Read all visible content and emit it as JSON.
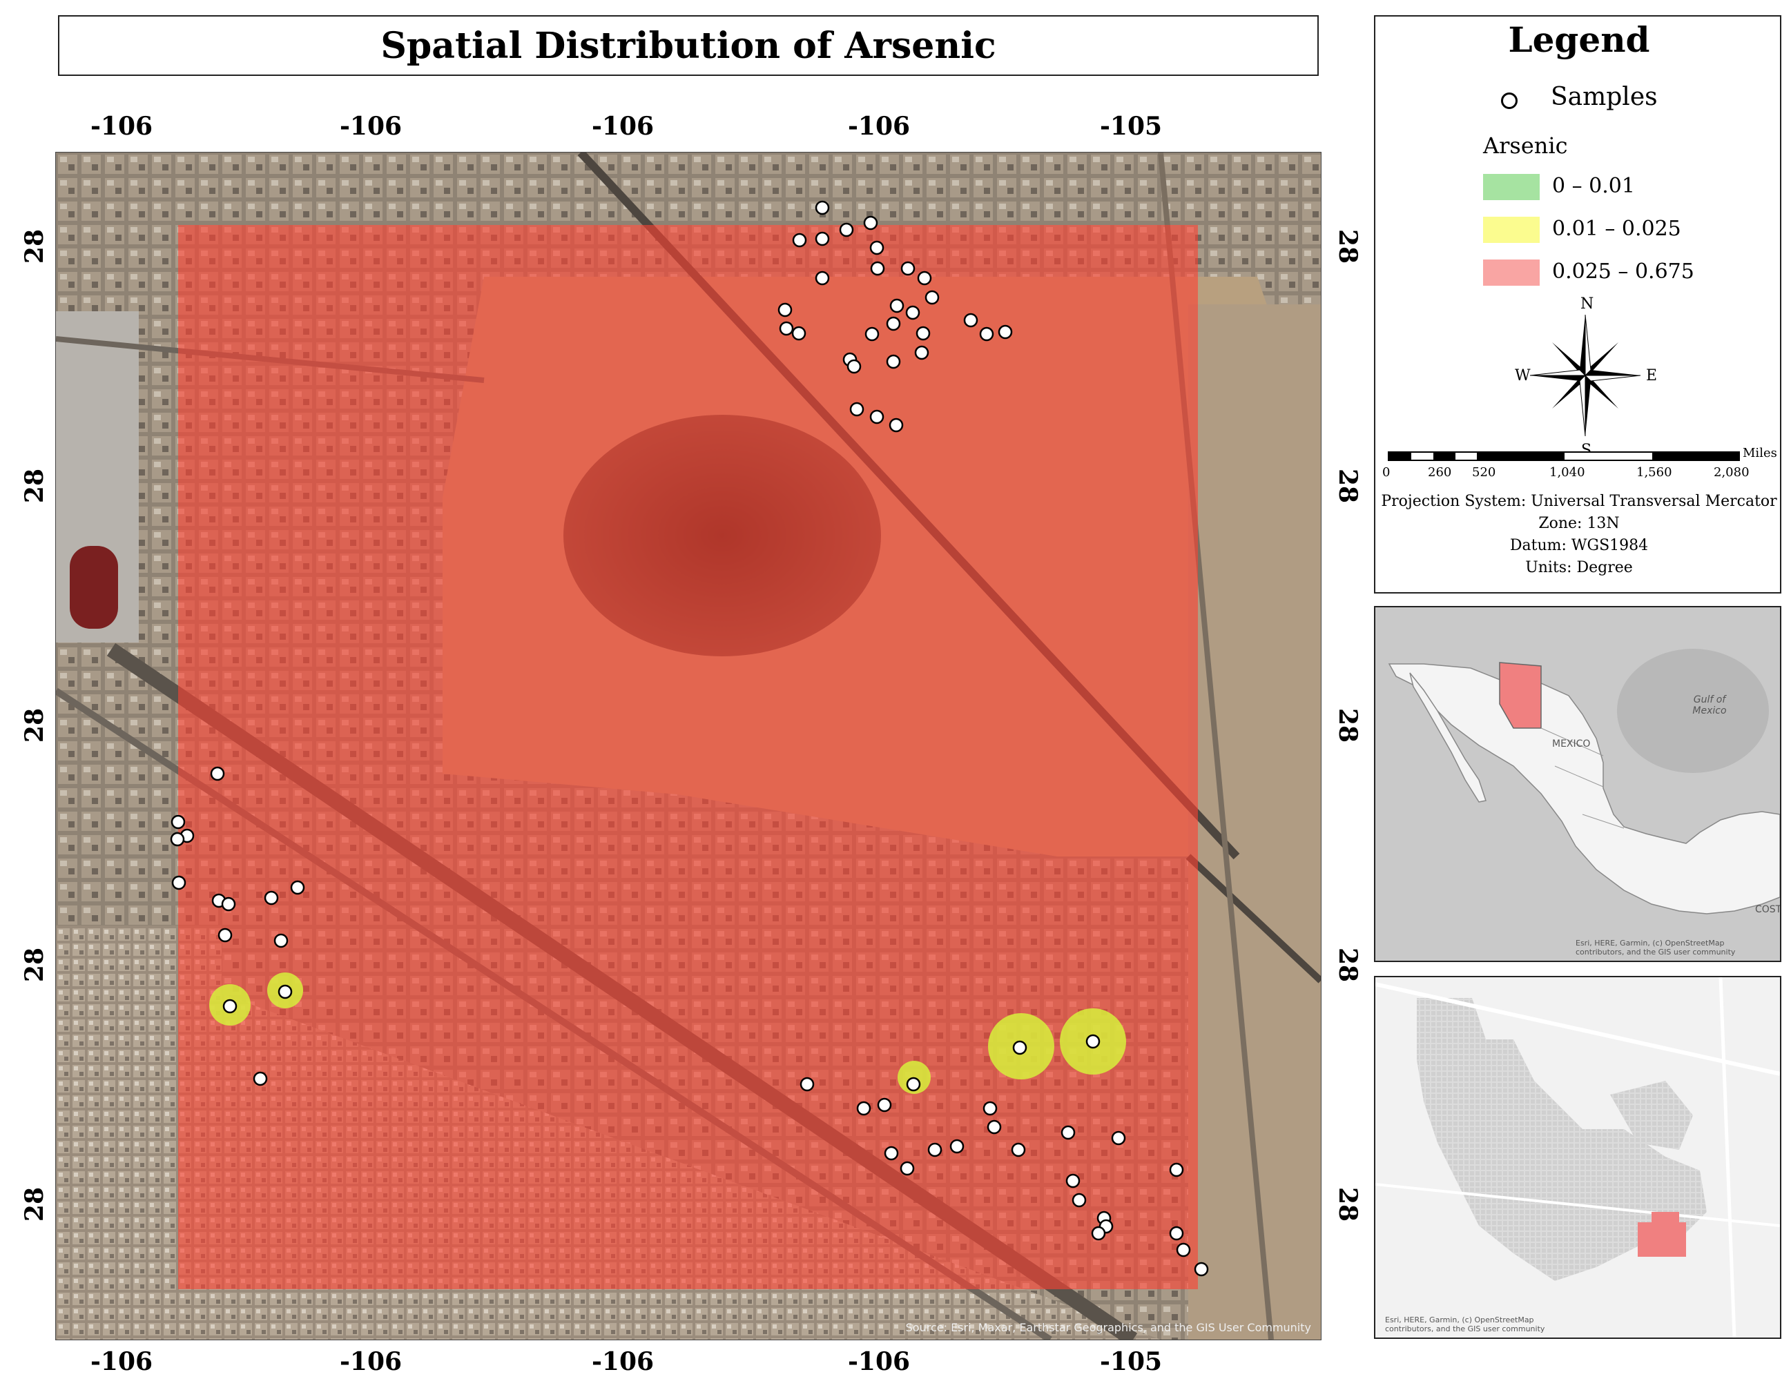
{
  "title": "Spatial Distribution of Arsenic",
  "axes": {
    "top_ticks": [
      "-106",
      "-106",
      "-106",
      "-106",
      "-105"
    ],
    "bottom_ticks": [
      "-106",
      "-106",
      "-106",
      "-106",
      "-105"
    ],
    "left_ticks": [
      "28",
      "28",
      "28",
      "28",
      "28"
    ],
    "right_ticks": [
      "28",
      "28",
      "28",
      "28",
      "28"
    ]
  },
  "map": {
    "attribution": "Source: Esri, Maxar, Earthstar Geographics, and the GIS User Community",
    "samples_count": 67,
    "layer_color": "#ff4030",
    "sample_color": "#ffffff",
    "hotspot_color": "#d7f03c"
  },
  "legend": {
    "title": "Legend",
    "samples_label": "Samples",
    "arsenic_label": "Arsenic",
    "classes": [
      {
        "label": "0 – 0.01",
        "color": "#a6e3a1"
      },
      {
        "label": "0.01 – 0.025",
        "color": "#fbfc8f"
      },
      {
        "label": "0.025 – 0.675",
        "color": "#f9a5a3"
      }
    ],
    "north_arrow": {
      "n": "N",
      "s": "S",
      "e": "E",
      "w": "W"
    },
    "scale": {
      "unit": "Miles",
      "labels": [
        "0",
        "260",
        "520",
        "1,040",
        "1,560",
        "2,080"
      ]
    },
    "info": [
      "Projection System: Universal Transversal Mercator",
      "Zone: 13N",
      "Datum: WGS1984",
      "Units: Degree"
    ]
  },
  "inset_mexico": {
    "gulf_label": "Gulf of Mexico",
    "country_label": "MEXICO",
    "edge_label": "COST",
    "attribution": "Esri, HERE, Garmin, (c) OpenStreetMap contributors, and the GIS user community",
    "highlight_color": "#f08080"
  },
  "inset_city": {
    "attribution": "Esri, HERE, Garmin, (c) OpenStreetMap contributors, and the GIS user community"
  }
}
